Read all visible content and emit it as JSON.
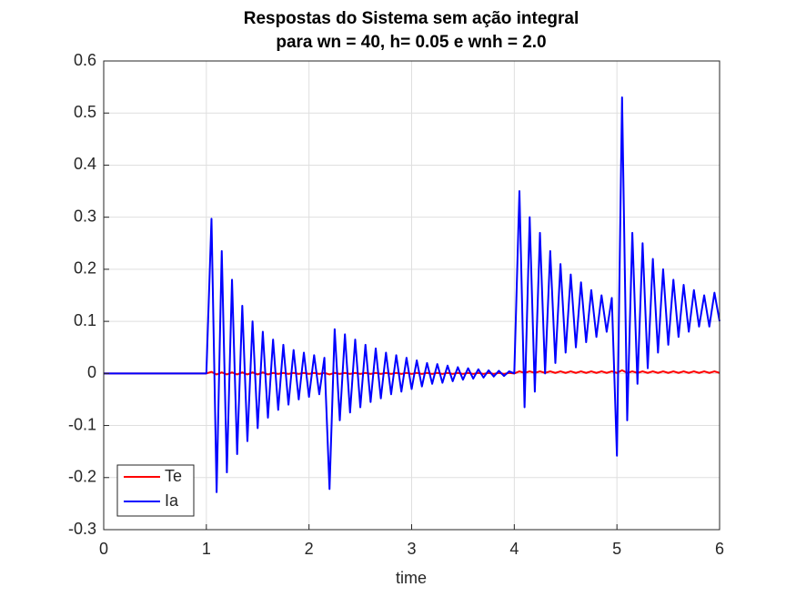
{
  "chart_data": {
    "type": "line",
    "title": [
      "Respostas do Sistema sem ação integral",
      "para wn = 40, h= 0.05 e wnh = 2.0"
    ],
    "x_label": "time",
    "xlim": [
      0,
      6
    ],
    "xticks": [
      0,
      1,
      2,
      3,
      4,
      5,
      6
    ],
    "ylim": [
      -0.3,
      0.6
    ],
    "yticks": [
      -0.3,
      -0.2,
      -0.1,
      0,
      0.1,
      0.2,
      0.3,
      0.4,
      0.5,
      0.6
    ],
    "grid": true,
    "legend_location": "southwest",
    "x": [
      0,
      0.05,
      0.1,
      0.15,
      0.2,
      0.25,
      0.3,
      0.35,
      0.4,
      0.45,
      0.5,
      0.55,
      0.6,
      0.65,
      0.7,
      0.75,
      0.8,
      0.85,
      0.9,
      0.95,
      1,
      1.05,
      1.1,
      1.15,
      1.2,
      1.25,
      1.3,
      1.35,
      1.4,
      1.45,
      1.5,
      1.55,
      1.6,
      1.65,
      1.7,
      1.75,
      1.8,
      1.85,
      1.9,
      1.95,
      2,
      2.05,
      2.1,
      2.15,
      2.2,
      2.25,
      2.3,
      2.35,
      2.4,
      2.45,
      2.5,
      2.55,
      2.6,
      2.65,
      2.7,
      2.75,
      2.8,
      2.85,
      2.9,
      2.95,
      3,
      3.05,
      3.1,
      3.15,
      3.2,
      3.25,
      3.3,
      3.35,
      3.4,
      3.45,
      3.5,
      3.55,
      3.6,
      3.65,
      3.7,
      3.75,
      3.8,
      3.85,
      3.9,
      3.95,
      4,
      4.05,
      4.1,
      4.15,
      4.2,
      4.25,
      4.3,
      4.35,
      4.4,
      4.45,
      4.5,
      4.55,
      4.6,
      4.65,
      4.7,
      4.75,
      4.8,
      4.85,
      4.9,
      4.95,
      5,
      5.05,
      5.1,
      5.15,
      5.2,
      5.25,
      5.3,
      5.35,
      5.4,
      5.45,
      5.5,
      5.55,
      5.6,
      5.65,
      5.7,
      5.75,
      5.8,
      5.85,
      5.9,
      5.95,
      6
    ],
    "series": [
      {
        "name": "Te",
        "color": "#ff0000",
        "values": [
          0,
          0,
          0,
          0,
          0,
          0,
          0,
          0,
          0,
          0,
          0,
          0,
          0,
          0,
          0,
          0,
          0,
          0,
          0,
          0,
          0,
          0.003,
          -0.002,
          0.002,
          -0.002,
          0.002,
          -0.002,
          0.002,
          -0.002,
          0.002,
          -0.002,
          0.002,
          -0.002,
          0.001,
          -0.001,
          0.001,
          -0.001,
          0.001,
          -0.001,
          0.001,
          -0.001,
          0.001,
          -0.001,
          0.001,
          -0.002,
          0.001,
          -0.001,
          0.001,
          -0.001,
          0.001,
          -0.001,
          0.001,
          -0.001,
          0.001,
          -0.001,
          0.001,
          -0.001,
          0.001,
          -0.001,
          0.001,
          -0.001,
          0.001,
          -0.001,
          0.001,
          -0.001,
          0.001,
          -0.001,
          0.001,
          -0.001,
          0.001,
          -0.001,
          0.001,
          -0.001,
          0.001,
          -0.001,
          0.001,
          -0.001,
          0.001,
          -0.001,
          0.001,
          0,
          0.004,
          0.001,
          0.004,
          0.001,
          0.004,
          0.001,
          0.004,
          0.001,
          0.004,
          0.001,
          0.004,
          0.001,
          0.004,
          0.001,
          0.004,
          0.001,
          0.004,
          0.001,
          0.004,
          0.001,
          0.006,
          0.001,
          0.004,
          0.001,
          0.004,
          0.001,
          0.004,
          0.001,
          0.004,
          0.001,
          0.004,
          0.001,
          0.004,
          0.001,
          0.004,
          0.001,
          0.004,
          0.001,
          0.004,
          0.001
        ]
      },
      {
        "name": "Ia",
        "color": "#0000ff",
        "values": [
          0,
          0,
          0,
          0,
          0,
          0,
          0,
          0,
          0,
          0,
          0,
          0,
          0,
          0,
          0,
          0,
          0,
          0,
          0,
          0,
          0,
          0.297,
          -0.228,
          0.235,
          -0.19,
          0.18,
          -0.155,
          0.13,
          -0.13,
          0.1,
          -0.105,
          0.08,
          -0.085,
          0.065,
          -0.07,
          0.055,
          -0.06,
          0.045,
          -0.05,
          0.04,
          -0.045,
          0.035,
          -0.04,
          0.03,
          -0.222,
          0.085,
          -0.09,
          0.075,
          -0.075,
          0.065,
          -0.065,
          0.055,
          -0.055,
          0.048,
          -0.048,
          0.04,
          -0.04,
          0.035,
          -0.035,
          0.03,
          -0.03,
          0.025,
          -0.025,
          0.02,
          -0.02,
          0.018,
          -0.018,
          0.015,
          -0.015,
          0.012,
          -0.012,
          0.01,
          -0.01,
          0.008,
          -0.008,
          0.006,
          -0.006,
          0.005,
          -0.005,
          0.004,
          0,
          0.35,
          -0.065,
          0.3,
          -0.035,
          0.27,
          0,
          0.235,
          0.02,
          0.21,
          0.04,
          0.19,
          0.05,
          0.175,
          0.06,
          0.16,
          0.07,
          0.15,
          0.08,
          0.145,
          -0.158,
          0.53,
          -0.09,
          0.27,
          -0.02,
          0.25,
          0.01,
          0.22,
          0.04,
          0.2,
          0.055,
          0.18,
          0.07,
          0.17,
          0.08,
          0.16,
          0.09,
          0.15,
          0.09,
          0.155,
          0.1
        ]
      }
    ]
  }
}
